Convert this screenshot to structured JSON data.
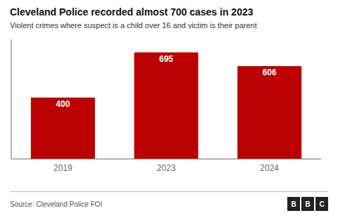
{
  "chart_data": {
    "type": "bar",
    "title": "Cleveland Police recorded almost 700 cases in 2023",
    "subtitle": "Violent crimes where suspect is a child over 16 and victim is their parent",
    "annotations": [
      "Source: Cleveland Police FOI",
      "BBC"
    ],
    "categories": [
      "2019",
      "2023",
      "2024"
    ],
    "values": [
      400,
      695,
      606
    ],
    "color": "#bb0000",
    "ylim": [
      0,
      780
    ],
    "tick_labels": "x",
    "data_labels": true,
    "grid": false
  }
}
